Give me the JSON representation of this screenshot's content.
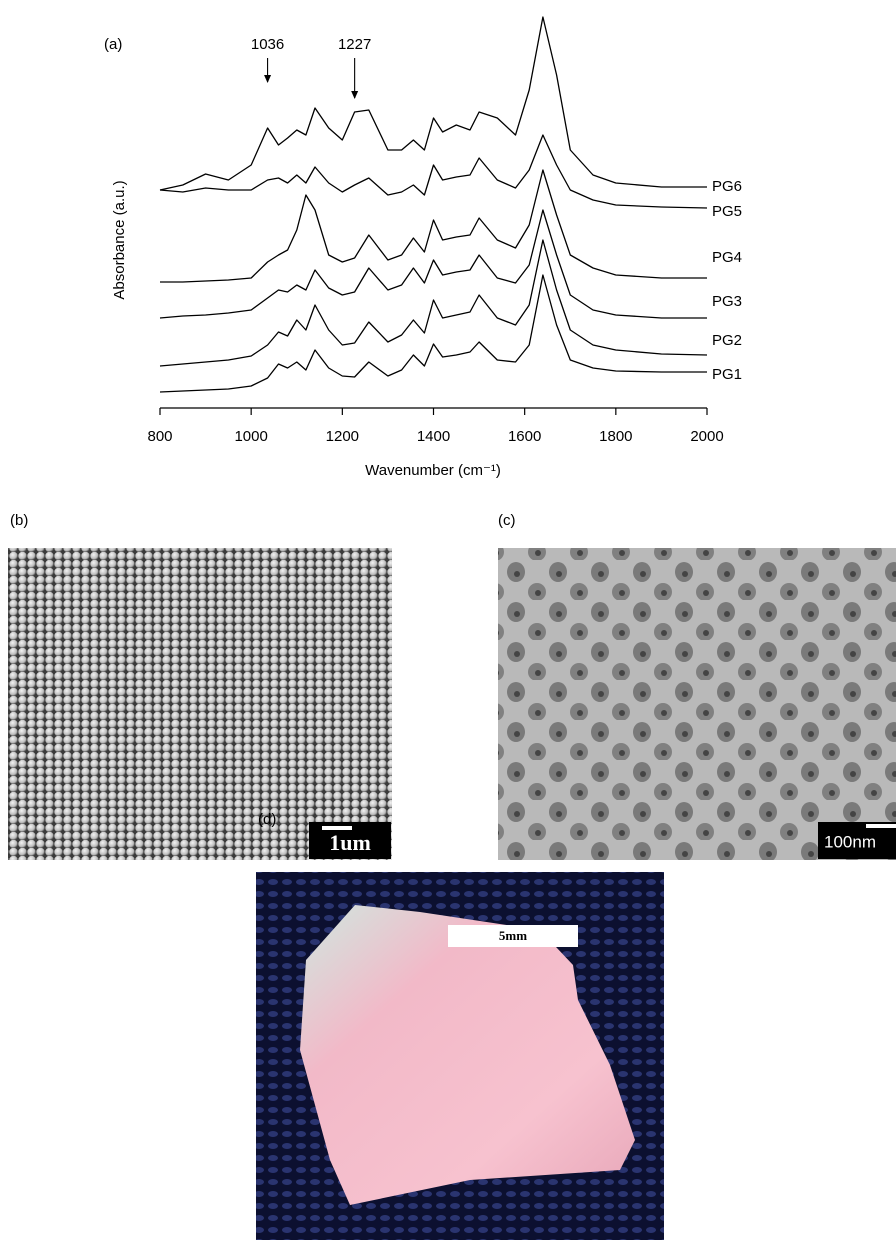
{
  "chart_data": {
    "type": "line",
    "y_label": "Absorbance (a.u.)",
    "x_label": "Wavenumber (cm⁻¹)",
    "xlim": [
      800,
      2000
    ],
    "xticks": [
      800,
      1000,
      1200,
      1400,
      1600,
      1800,
      2000
    ],
    "ylim": [
      0,
      400
    ],
    "annotations": [
      {
        "text": "1036",
        "x": 1036
      },
      {
        "text": "1227",
        "x": 1227
      }
    ],
    "x": [
      800,
      850,
      900,
      950,
      1000,
      1036,
      1060,
      1080,
      1100,
      1120,
      1140,
      1170,
      1200,
      1227,
      1258,
      1300,
      1330,
      1356,
      1380,
      1400,
      1420,
      1450,
      1480,
      1500,
      1540,
      1580,
      1610,
      1640,
      1670,
      1700,
      1750,
      1800,
      1900,
      2000
    ],
    "series": [
      {
        "name": "PG1",
        "color": "#000000",
        "values": [
          16,
          17,
          18,
          19,
          22,
          30,
          44,
          40,
          46,
          38,
          58,
          40,
          32,
          31,
          46,
          32,
          38,
          53,
          42,
          64,
          51,
          53,
          56,
          66,
          48,
          46,
          63,
          133,
          83,
          48,
          40,
          37,
          36,
          36
        ]
      },
      {
        "name": "PG2",
        "color": "#000000",
        "values": [
          42,
          44,
          46,
          48,
          52,
          63,
          76,
          72,
          88,
          78,
          103,
          78,
          63,
          65,
          86,
          66,
          73,
          88,
          75,
          108,
          90,
          93,
          96,
          113,
          90,
          83,
          103,
          168,
          118,
          78,
          63,
          58,
          54,
          53
        ]
      },
      {
        "name": "PG3",
        "color": "#000000",
        "values": [
          90,
          92,
          93,
          95,
          98,
          110,
          118,
          116,
          123,
          118,
          138,
          120,
          113,
          116,
          140,
          118,
          123,
          140,
          125,
          148,
          133,
          136,
          138,
          153,
          130,
          125,
          143,
          198,
          153,
          113,
          98,
          93,
          90,
          90
        ]
      },
      {
        "name": "PG4",
        "color": "#000000",
        "values": [
          126,
          126,
          127,
          128,
          130,
          146,
          153,
          158,
          178,
          213,
          198,
          153,
          146,
          150,
          173,
          148,
          153,
          170,
          156,
          188,
          168,
          171,
          173,
          190,
          168,
          160,
          183,
          238,
          193,
          153,
          140,
          133,
          130,
          130
        ]
      },
      {
        "name": "PG5",
        "color": "#000000",
        "values": [
          218,
          216,
          220,
          218,
          218,
          228,
          230,
          225,
          233,
          225,
          241,
          225,
          216,
          223,
          230,
          213,
          216,
          223,
          213,
          243,
          228,
          231,
          233,
          250,
          228,
          220,
          238,
          273,
          243,
          218,
          208,
          203,
          201,
          200
        ]
      },
      {
        "name": "PG6",
        "color": "#000000",
        "values": [
          218,
          223,
          234,
          228,
          243,
          280,
          263,
          270,
          278,
          273,
          300,
          280,
          268,
          296,
          298,
          258,
          258,
          268,
          258,
          290,
          276,
          283,
          278,
          296,
          290,
          273,
          318,
          391,
          333,
          258,
          233,
          225,
          221,
          221
        ]
      }
    ]
  },
  "panels": {
    "a": {
      "label": "(a)"
    },
    "b": {
      "label": "(b)",
      "scale_bar": "1um"
    },
    "c": {
      "label": "(c)",
      "scale_bar": "100nm"
    },
    "d": {
      "label": "(d)",
      "scale_bar": "5mm"
    }
  }
}
